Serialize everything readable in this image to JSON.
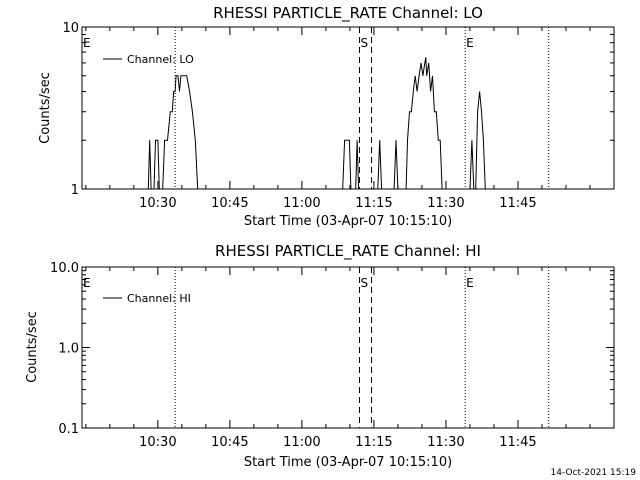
{
  "footer": {
    "timestamp": "14-Oct-2021 15:19"
  },
  "chart_data": [
    {
      "type": "line",
      "title": "RHESSI PARTICLE_RATE Channel: LO",
      "xlabel": "Start Time (03-Apr-07 10:15:10)",
      "ylabel": "Counts/sec",
      "yscale": "log",
      "ylim": [
        1,
        10
      ],
      "xlim": [
        614.2,
        725.0
      ],
      "x_unit": "minutes since 00:00 on 03-Apr-07",
      "x_ticks": [
        630,
        645,
        660,
        675,
        690,
        705
      ],
      "x_tick_labels": [
        "10:30",
        "10:45",
        "11:00",
        "11:15",
        "11:30",
        "11:45"
      ],
      "y_ticks": [
        1,
        10
      ],
      "y_tick_labels": [
        "1",
        "10"
      ],
      "legend": {
        "entries": [
          "Channel: LO"
        ],
        "position": "top-left"
      },
      "markers": [
        {
          "label": "E",
          "x": 614.2,
          "style": "none"
        },
        {
          "label": "",
          "x": 633.6,
          "style": "dotted"
        },
        {
          "label": "S",
          "x": 672.0,
          "style": "dashed"
        },
        {
          "label": "",
          "x": 674.5,
          "style": "dashed"
        },
        {
          "label": "E",
          "x": 694.0,
          "style": "dotted"
        },
        {
          "label": "",
          "x": 711.4,
          "style": "dotted"
        }
      ],
      "series": [
        {
          "name": "Channel: LO",
          "points": [
            [
              628.0,
              1
            ],
            [
              628.3,
              2
            ],
            [
              628.6,
              1
            ],
            [
              629.2,
              1
            ],
            [
              629.5,
              2
            ],
            [
              630.0,
              2
            ],
            [
              630.3,
              1
            ],
            [
              631.0,
              1
            ],
            [
              631.4,
              2
            ],
            [
              632.0,
              2
            ],
            [
              632.6,
              3
            ],
            [
              633.0,
              3
            ],
            [
              633.3,
              4
            ],
            [
              633.6,
              4
            ],
            [
              633.8,
              5
            ],
            [
              634.2,
              5
            ],
            [
              634.5,
              4
            ],
            [
              634.8,
              5
            ],
            [
              636.0,
              5
            ],
            [
              636.6,
              4
            ],
            [
              637.2,
              3
            ],
            [
              637.8,
              2
            ],
            [
              638.3,
              1
            ],
            [
              668.5,
              1
            ],
            [
              668.9,
              2
            ],
            [
              669.9,
              2
            ],
            [
              670.2,
              1
            ],
            [
              671.2,
              1
            ],
            [
              671.5,
              2
            ],
            [
              671.8,
              1
            ],
            [
              675.8,
              1
            ],
            [
              676.2,
              2
            ],
            [
              676.6,
              1
            ],
            [
              679.2,
              1
            ],
            [
              679.6,
              2
            ],
            [
              680.0,
              1
            ],
            [
              681.7,
              1
            ],
            [
              682.0,
              2
            ],
            [
              682.4,
              3
            ],
            [
              682.8,
              3
            ],
            [
              683.2,
              4
            ],
            [
              683.6,
              5
            ],
            [
              684.0,
              4
            ],
            [
              684.4,
              5
            ],
            [
              684.8,
              6
            ],
            [
              685.2,
              5
            ],
            [
              685.6,
              6
            ],
            [
              685.8,
              6.5
            ],
            [
              686.0,
              5
            ],
            [
              686.4,
              6
            ],
            [
              686.8,
              4
            ],
            [
              687.2,
              5
            ],
            [
              687.6,
              3
            ],
            [
              688.0,
              3
            ],
            [
              688.4,
              2
            ],
            [
              688.8,
              2
            ],
            [
              689.2,
              1
            ],
            [
              695.0,
              1
            ],
            [
              695.4,
              2
            ],
            [
              695.8,
              1
            ],
            [
              696.2,
              1
            ],
            [
              696.6,
              3
            ],
            [
              697.0,
              4
            ],
            [
              697.4,
              3
            ],
            [
              697.8,
              2
            ],
            [
              698.2,
              1
            ]
          ]
        }
      ]
    },
    {
      "type": "line",
      "title": "RHESSI PARTICLE_RATE Channel: HI",
      "xlabel": "Start Time (03-Apr-07 10:15:10)",
      "ylabel": "Counts/sec",
      "yscale": "log",
      "ylim": [
        0.1,
        10
      ],
      "xlim": [
        614.2,
        725.0
      ],
      "x_unit": "minutes since 00:00 on 03-Apr-07",
      "x_ticks": [
        630,
        645,
        660,
        675,
        690,
        705
      ],
      "x_tick_labels": [
        "10:30",
        "10:45",
        "11:00",
        "11:15",
        "11:30",
        "11:45"
      ],
      "y_ticks": [
        0.1,
        1,
        10
      ],
      "y_tick_labels": [
        "0.1",
        "1.0",
        "10.0"
      ],
      "legend": {
        "entries": [
          "Channel: HI"
        ],
        "position": "top-left"
      },
      "markers": [
        {
          "label": "E",
          "x": 614.2,
          "style": "none"
        },
        {
          "label": "",
          "x": 633.6,
          "style": "dotted"
        },
        {
          "label": "S",
          "x": 672.0,
          "style": "dashed"
        },
        {
          "label": "",
          "x": 674.5,
          "style": "dashed"
        },
        {
          "label": "E",
          "x": 694.0,
          "style": "dotted"
        },
        {
          "label": "",
          "x": 711.4,
          "style": "dotted"
        }
      ],
      "series": [
        {
          "name": "Channel: HI",
          "points": []
        }
      ]
    }
  ]
}
